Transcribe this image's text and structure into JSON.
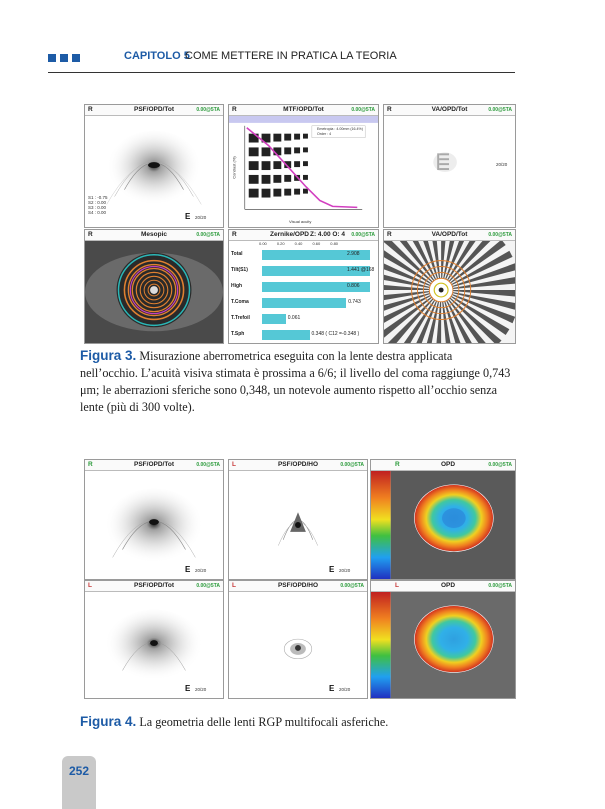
{
  "header": {
    "chapter": "CAPITOLO 5",
    "title": "COME METTERE IN PRATICA LA TEORIA"
  },
  "figure3": {
    "panels": [
      {
        "side": "R",
        "title": "PSF/OPD/Tot",
        "tag": "0.00@5TA",
        "eye_chart": "20/20"
      },
      {
        "side": "R",
        "title": "MTF/OPD/Tot",
        "tag": "0.00@5TA",
        "ylabel": "Contrast (%)",
        "xlabel": "Visual acuity",
        "legend": "Emetropia : 4.00mm (16.4%)",
        "order": "Order : 4"
      },
      {
        "side": "R",
        "title": "VA/OPD/Tot",
        "tag": "0.00@5TA",
        "eye_chart": "20/20"
      },
      {
        "side": "R",
        "title": "Mesopic",
        "tag": "0.00@5TA"
      },
      {
        "side": "R",
        "title": "Zernike/OPD",
        "zinfo": "Z: 4.00  O: 4",
        "tag": "0.00@5TA",
        "axis": [
          "0.00",
          "0.20",
          "0.40",
          "0.60",
          "0.80"
        ]
      },
      {
        "side": "R",
        "title": "VA/OPD/Tot",
        "tag": "0.00@5TA"
      }
    ],
    "zernike_rows": [
      {
        "label": "Total",
        "value": "2.908",
        "fraction": 1.0
      },
      {
        "label": "Tilt(S1)",
        "value": "1.441 @168",
        "fraction": 1.0
      },
      {
        "label": "High",
        "value": "0.806",
        "fraction": 1.0
      },
      {
        "label": "T.Coma",
        "value": "0.743",
        "fraction": 0.78
      },
      {
        "label": "T.Trefoil",
        "value": "0.061",
        "fraction": 0.22
      },
      {
        "label": "T.Sph",
        "value": "0.348 ( C12 =-0.348 )",
        "fraction": 0.44
      }
    ],
    "caption_label": "Figura 3.",
    "caption_text": " Misurazione aberrometrica eseguita con la lente destra applicata nell’occhio. L’acuità visiva stimata è prossima a 6/6; il livello del coma raggiunge 0,743 μm; le aberrazioni sferiche sono 0,348, un notevole aumento rispetto all’occhio senza lente (più di 300 volte)."
  },
  "figure4": {
    "panels": [
      {
        "side": "R",
        "title": "PSF/OPD/Tot",
        "tag": "0.00@5TA",
        "eye_chart": "20/20"
      },
      {
        "side": "L",
        "title": "PSF/OPD/HO",
        "tag": "0.00@5TA",
        "eye_chart": "20/20"
      },
      {
        "side": "R",
        "title": "OPD",
        "tag": "0.00@5TA"
      },
      {
        "side": "L",
        "title": "PSF/OPD/Tot",
        "tag": "0.00@5TA",
        "eye_chart": "20/20"
      },
      {
        "side": "L",
        "title": "PSF/OPD/HO",
        "tag": "0.00@5TA",
        "eye_chart": "20/20"
      },
      {
        "side": "L",
        "title": "OPD",
        "tag": "0.00@5TA"
      }
    ],
    "caption_label": "Figura 4.",
    "caption_text": " La geometria delle lenti RGP multifocali asferiche."
  },
  "page_number": "252",
  "colors": {
    "accent": "#1d5ba6",
    "page_tab": "#c9c9c9",
    "zernike_bar": "#55c8d6"
  }
}
